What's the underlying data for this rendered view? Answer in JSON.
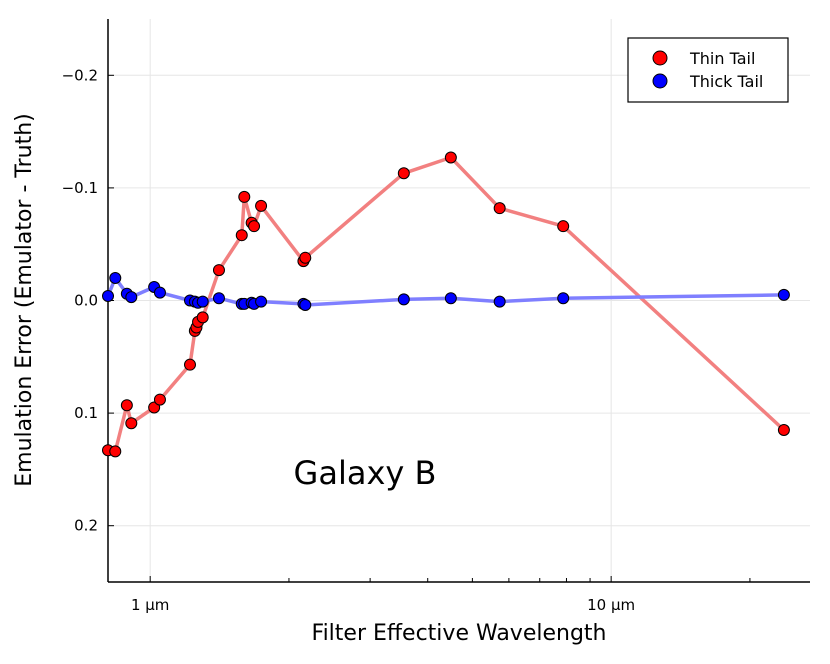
{
  "chart_data": {
    "type": "line",
    "title": "",
    "xlabel": "Filter Effective Wavelength",
    "ylabel": "Emulation Error (Emulator - Truth)",
    "x_scale": "log",
    "xlim": [
      0.81,
      27
    ],
    "ylim": [
      0.25,
      -0.25
    ],
    "y_inverted": true,
    "grid": true,
    "x_ticks": [
      1,
      10
    ],
    "x_tick_labels": [
      "1 μm",
      "10 μm"
    ],
    "x_minor_ticks": [
      2,
      3,
      4,
      5,
      6,
      7,
      8,
      9,
      20
    ],
    "y_ticks": [
      -0.2,
      -0.1,
      0.0,
      0.1,
      0.2
    ],
    "y_tick_labels": [
      "−0.2",
      "−0.1",
      "0.0",
      "0.1",
      "0.2"
    ],
    "legend": {
      "position": "top-right",
      "entries": [
        "Thin Tail",
        "Thick Tail"
      ]
    },
    "annotation": "Galaxy B",
    "series": [
      {
        "name": "Thin Tail",
        "color": "#ff0000",
        "line_color": "#f28080",
        "x": [
          0.81,
          0.84,
          0.89,
          0.91,
          1.02,
          1.05,
          1.22,
          1.25,
          1.26,
          1.27,
          1.3,
          1.41,
          1.58,
          1.6,
          1.66,
          1.68,
          1.74,
          2.15,
          2.17,
          3.55,
          4.49,
          5.73,
          7.87,
          23.7
        ],
        "y": [
          0.133,
          0.134,
          0.093,
          0.109,
          0.095,
          0.088,
          0.057,
          0.027,
          0.024,
          0.019,
          0.015,
          -0.027,
          -0.058,
          -0.092,
          -0.069,
          -0.066,
          -0.084,
          -0.035,
          -0.038,
          -0.113,
          -0.127,
          -0.082,
          -0.066,
          0.115
        ]
      },
      {
        "name": "Thick Tail",
        "color": "#0000ff",
        "line_color": "#7f7fff",
        "x": [
          0.81,
          0.84,
          0.89,
          0.91,
          1.02,
          1.05,
          1.22,
          1.25,
          1.27,
          1.3,
          1.41,
          1.58,
          1.6,
          1.66,
          1.68,
          1.74,
          2.15,
          2.17,
          3.55,
          4.49,
          5.73,
          7.87,
          23.7
        ],
        "y": [
          -0.004,
          -0.02,
          -0.006,
          -0.003,
          -0.012,
          -0.007,
          0.0,
          0.001,
          0.002,
          0.001,
          -0.002,
          0.003,
          0.003,
          0.002,
          0.003,
          0.001,
          0.003,
          0.004,
          -0.001,
          -0.002,
          0.001,
          -0.002,
          -0.005
        ]
      }
    ]
  }
}
